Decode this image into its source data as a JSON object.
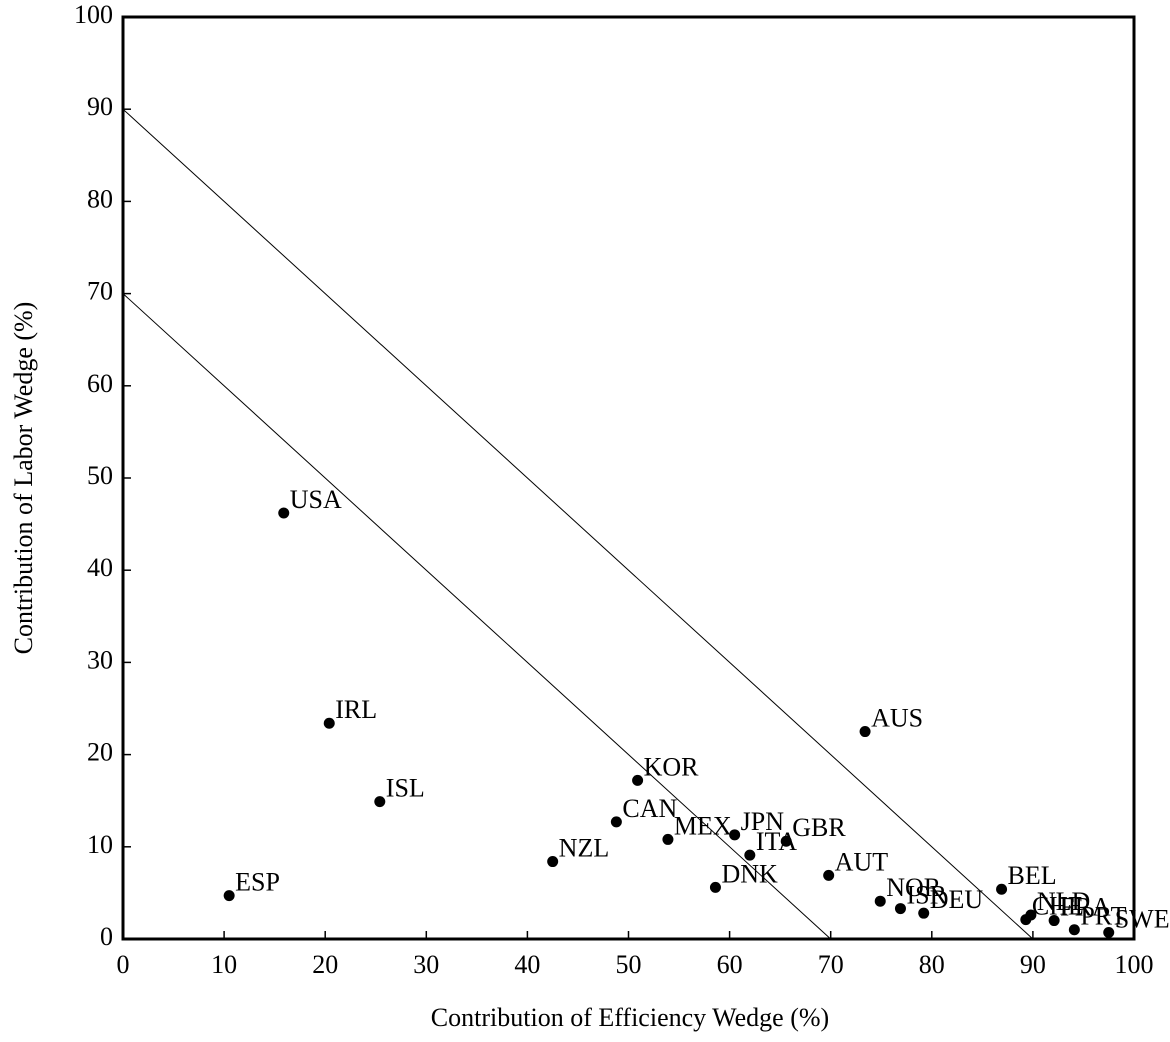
{
  "chart_data": {
    "type": "scatter",
    "xlabel": "Contribution of Efficiency Wedge (%)",
    "ylabel": "Contribution of Labor Wedge (%)",
    "labels": [
      "USA",
      "IRL",
      "ISL",
      "ESP",
      "NZL",
      "KOR",
      "CAN",
      "MEX",
      "JPN",
      "ITA",
      "GBR",
      "DNK",
      "AUT",
      "AUS",
      "NOR",
      "ISR",
      "DEU",
      "BEL",
      "CHE",
      "NLD",
      "FRA",
      "PRT",
      "SWE"
    ],
    "x": [
      15.9,
      20.4,
      25.4,
      10.5,
      42.5,
      50.9,
      48.8,
      53.9,
      60.5,
      62.0,
      65.6,
      58.6,
      69.8,
      73.4,
      74.9,
      76.9,
      79.2,
      86.9,
      89.3,
      89.8,
      92.1,
      94.1,
      97.5
    ],
    "y": [
      46.2,
      23.4,
      14.9,
      4.7,
      8.4,
      17.2,
      12.7,
      10.8,
      11.3,
      9.1,
      10.6,
      5.6,
      6.9,
      22.5,
      4.1,
      3.3,
      2.8,
      5.4,
      2.1,
      2.6,
      2.0,
      1.0,
      0.7
    ],
    "color": "#000000",
    "lines": [
      {
        "x": [
          0,
          90
        ],
        "y": [
          90,
          0
        ]
      },
      {
        "x": [
          0,
          70
        ],
        "y": [
          70,
          0
        ]
      }
    ],
    "xlim": [
      0,
      100
    ],
    "ylim": [
      0,
      100
    ],
    "xticks": [
      0,
      10,
      20,
      30,
      40,
      50,
      60,
      70,
      80,
      90,
      100
    ],
    "yticks": [
      0,
      10,
      20,
      30,
      40,
      50,
      60,
      70,
      80,
      90,
      100
    ]
  }
}
